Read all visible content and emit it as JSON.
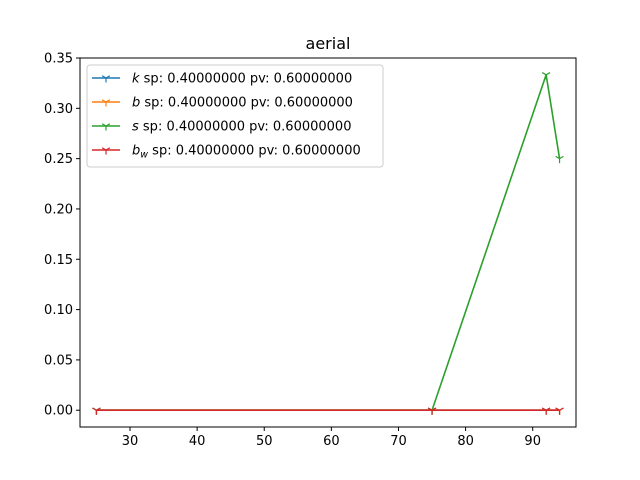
{
  "chart_data": {
    "type": "line",
    "title": "aerial",
    "xlabel": "",
    "ylabel": "",
    "xlim": [
      22.55,
      96.45
    ],
    "ylim": [
      -0.01667,
      0.35
    ],
    "xticks": [
      30,
      40,
      50,
      60,
      70,
      80,
      90
    ],
    "yticks": [
      0.0,
      0.05,
      0.1,
      0.15,
      0.2,
      0.25,
      0.3,
      0.35
    ],
    "xtick_labels": [
      "30",
      "40",
      "50",
      "60",
      "70",
      "80",
      "90"
    ],
    "ytick_labels": [
      "0.00",
      "0.05",
      "0.10",
      "0.15",
      "0.20",
      "0.25",
      "0.30",
      "0.35"
    ],
    "grid": false,
    "legend_position": "top-left",
    "marker": "tri_down",
    "series": [
      {
        "name_symbol": "k",
        "name_sub": "",
        "name_suffix": " sp: 0.40000000 pv: 0.60000000",
        "color": "#1f77b4",
        "x": [
          25,
          75,
          92,
          94
        ],
        "y": [
          0,
          0,
          0,
          0
        ]
      },
      {
        "name_symbol": "b",
        "name_sub": "",
        "name_suffix": " sp: 0.40000000 pv: 0.60000000",
        "color": "#ff7f0e",
        "x": [
          25,
          75,
          92,
          94
        ],
        "y": [
          0,
          0,
          0,
          0
        ]
      },
      {
        "name_symbol": "s",
        "name_sub": "",
        "name_suffix": " sp: 0.40000000 pv: 0.60000000",
        "color": "#2ca02c",
        "x": [
          25,
          75,
          92,
          94
        ],
        "y": [
          0,
          0,
          0.3333,
          0.25
        ]
      },
      {
        "name_symbol": "b",
        "name_sub": "w",
        "name_suffix": " sp: 0.40000000 pv: 0.60000000",
        "color": "#d62728",
        "x": [
          25,
          75,
          92,
          94
        ],
        "y": [
          0,
          0,
          0,
          0
        ]
      }
    ]
  }
}
